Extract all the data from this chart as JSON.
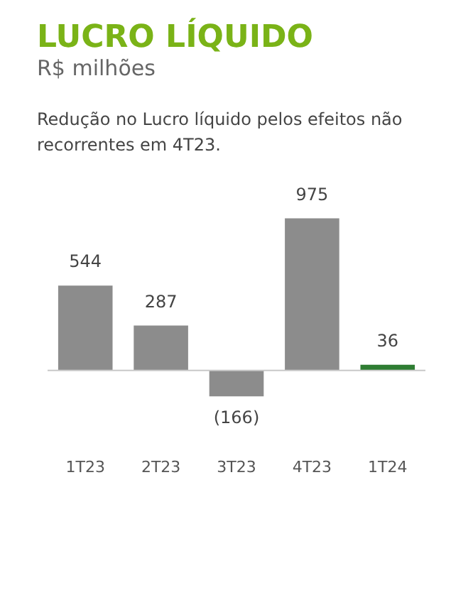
{
  "chart_data": {
    "type": "bar",
    "title": "LUCRO LÍQUIDO",
    "subtitle": "R$ milhões",
    "annotations": [
      "Redução no Lucro líquido pelos efeitos não recorrentes em 4T23."
    ],
    "categories": [
      "1T23",
      "2T23",
      "3T23",
      "4T23",
      "1T24"
    ],
    "values": [
      544,
      287,
      -166,
      975,
      36
    ],
    "colors": [
      "#8c8c8c",
      "#8c8c8c",
      "#8c8c8c",
      "#8c8c8c",
      "#2e7d32"
    ],
    "value_labels": [
      "544",
      "287",
      "(166)",
      "975",
      "36"
    ],
    "grid": false,
    "legend": false
  }
}
